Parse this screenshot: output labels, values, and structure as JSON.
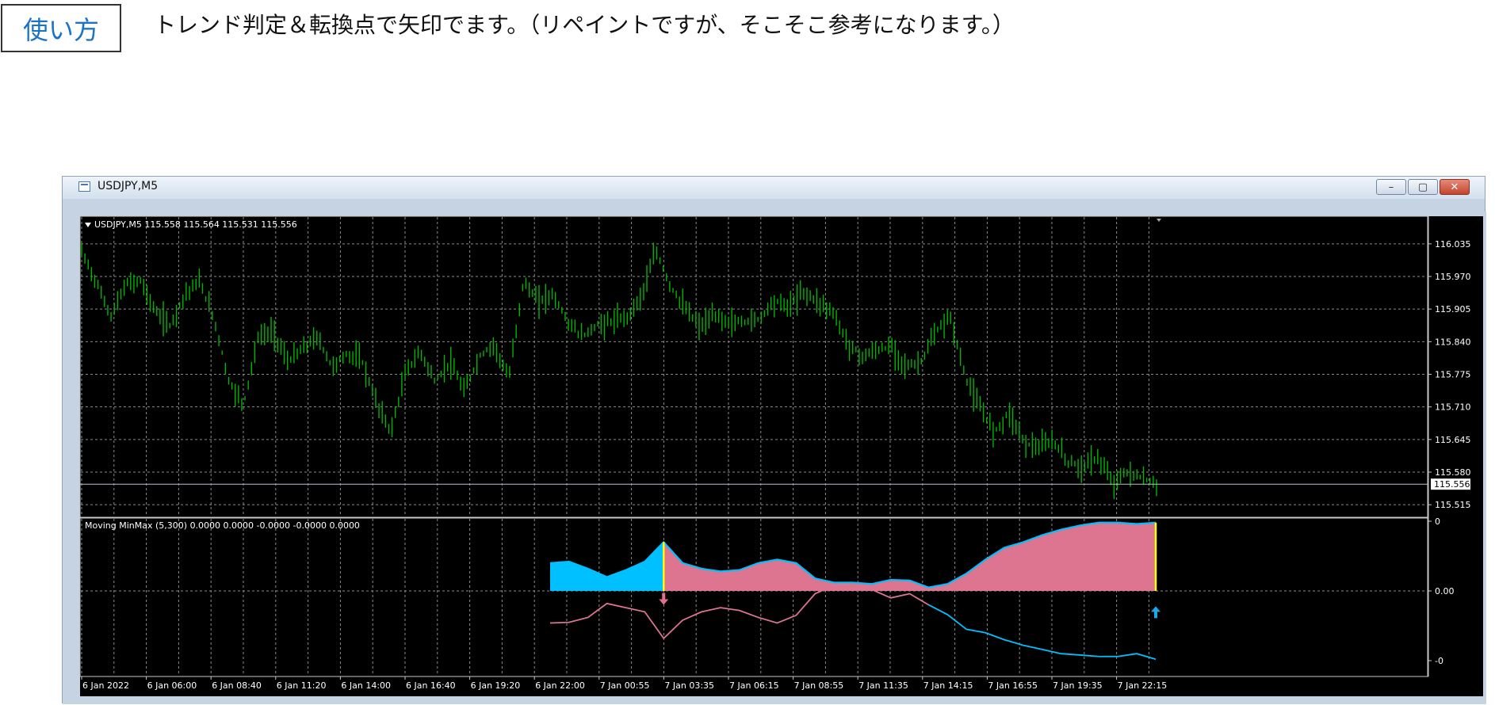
{
  "annotation": {
    "label": "使い方",
    "description": "トレンド判定＆転換点で矢印でます。（リペイントですが、そこそこ参考になります。）"
  },
  "window": {
    "title": "USDJPY,M5",
    "buttons": {
      "minimize_icon": "minimize-icon",
      "maximize_icon": "maximize-icon",
      "close_icon": "close-icon"
    }
  },
  "colors": {
    "background": "#000000",
    "grid": "#8a8a8a",
    "candles": "#00b400",
    "bull_fill": "#00c0ff",
    "bear_fill": "#dd7490",
    "signal_bar": "#ffff00",
    "up_arrow": "#1aa8e8",
    "down_arrow": "#e0708e",
    "price_line": "#b8c2cc"
  },
  "chart_data": [
    {
      "type": "line",
      "title": "USDJPY,M5  115.558 115.564 115.531 115.556",
      "series": [
        {
          "values": [
            116.02,
            115.958,
            115.89,
            115.955,
            115.962,
            115.9,
            115.872,
            115.935,
            115.96,
            115.885,
            115.76,
            115.715,
            115.85,
            115.86,
            115.8,
            115.825,
            115.85,
            115.79,
            115.815,
            115.805,
            115.72,
            115.66,
            115.78,
            115.82,
            115.76,
            115.8,
            115.74,
            115.81,
            115.835,
            115.765,
            115.96,
            115.92,
            115.935,
            115.88,
            115.85,
            115.873,
            115.88,
            115.888,
            115.93,
            116.02,
            115.95,
            115.905,
            115.87,
            115.892,
            115.878,
            115.88,
            115.885,
            115.922,
            115.91,
            115.94,
            115.92,
            115.9,
            115.838,
            115.81,
            115.823,
            115.83,
            115.79,
            115.8,
            115.858,
            115.89,
            115.77,
            115.708,
            115.66,
            115.7,
            115.64,
            115.628,
            115.642,
            115.6,
            115.59,
            115.61,
            115.558,
            115.58,
            115.568,
            115.556
          ]
        }
      ],
      "current_price": "115.556",
      "ylim": [
        115.49,
        116.09
      ],
      "ytick_labels": [
        "116.035",
        "115.970",
        "115.905",
        "115.840",
        "115.775",
        "115.710",
        "115.645",
        "115.580",
        "115.515"
      ]
    },
    {
      "type": "area",
      "title": "Moving MinMax (5,300) 0.0000 0.0000 -0.0000 -0.0000 0.0000",
      "series": [
        {
          "values": [
            0.4,
            0.42,
            0.32,
            0.2,
            0.3,
            0.42,
            0.7,
            0.4,
            0.32,
            0.28,
            0.3,
            0.4,
            0.45,
            0.4,
            0.18,
            0.12,
            0.12,
            0.1,
            0.16,
            0.15,
            0.05,
            0.1,
            0.25,
            0.45,
            0.62,
            0.7,
            0.8,
            0.88,
            0.94,
            0.98,
            0.98,
            0.96,
            0.98
          ]
        },
        {
          "values": [
            -0.46,
            -0.45,
            -0.38,
            -0.18,
            -0.24,
            -0.3,
            -0.68,
            -0.42,
            -0.3,
            -0.24,
            -0.28,
            -0.38,
            -0.46,
            -0.35,
            -0.04,
            0.08,
            0.06,
            0.02,
            -0.1,
            -0.04,
            -0.2,
            -0.34,
            -0.55,
            -0.6,
            -0.7,
            -0.78,
            -0.84,
            -0.9,
            -0.92,
            -0.94,
            -0.94,
            -0.9,
            -0.98
          ]
        }
      ],
      "ylim": [
        -1,
        1
      ],
      "ytick_labels": [
        "0",
        "0.00",
        "-0"
      ],
      "signals": [
        {
          "direction": "down",
          "index": 6
        },
        {
          "direction": "up",
          "index": 32
        }
      ],
      "x_tick_labels": [
        "6 Jan 2022",
        "6 Jan 06:00",
        "6 Jan 08:40",
        "6 Jan 11:20",
        "6 Jan 14:00",
        "6 Jan 16:40",
        "6 Jan 19:20",
        "6 Jan 22:00",
        "7 Jan 00:55",
        "7 Jan 03:35",
        "7 Jan 06:15",
        "7 Jan 08:55",
        "7 Jan 11:35",
        "7 Jan 14:15",
        "7 Jan 16:55",
        "7 Jan 19:35",
        "7 Jan 22:15"
      ]
    }
  ]
}
